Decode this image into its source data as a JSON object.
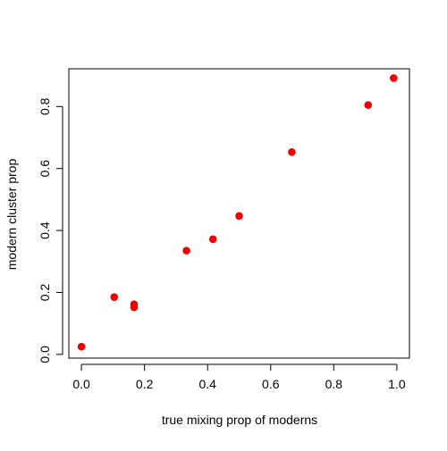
{
  "chart_data": {
    "type": "scatter",
    "title": "",
    "xlabel": "true mixing prop of moderns",
    "ylabel": "modern cluster prop",
    "xlim": [
      -0.04,
      1.04
    ],
    "ylim": [
      -0.012,
      0.922
    ],
    "grid": false,
    "x_ticks": [
      0.0,
      0.2,
      0.4,
      0.6,
      0.8,
      1.0
    ],
    "x_tick_labels": [
      "0.0",
      "0.2",
      "0.4",
      "0.6",
      "0.8",
      "1.0"
    ],
    "y_ticks": [
      0.0,
      0.2,
      0.4,
      0.6,
      0.8
    ],
    "y_tick_labels": [
      "0.0",
      "0.2",
      "0.4",
      "0.6",
      "0.8"
    ],
    "point_color": "#ee0000",
    "series": [
      {
        "points": [
          {
            "x": 0.0,
            "y": 0.025
          },
          {
            "x": 0.104,
            "y": 0.185
          },
          {
            "x": 0.167,
            "y": 0.162
          },
          {
            "x": 0.167,
            "y": 0.152
          },
          {
            "x": 0.333,
            "y": 0.335
          },
          {
            "x": 0.417,
            "y": 0.372
          },
          {
            "x": 0.5,
            "y": 0.447
          },
          {
            "x": 0.667,
            "y": 0.653
          },
          {
            "x": 0.909,
            "y": 0.805
          },
          {
            "x": 0.99,
            "y": 0.892
          }
        ]
      }
    ]
  }
}
